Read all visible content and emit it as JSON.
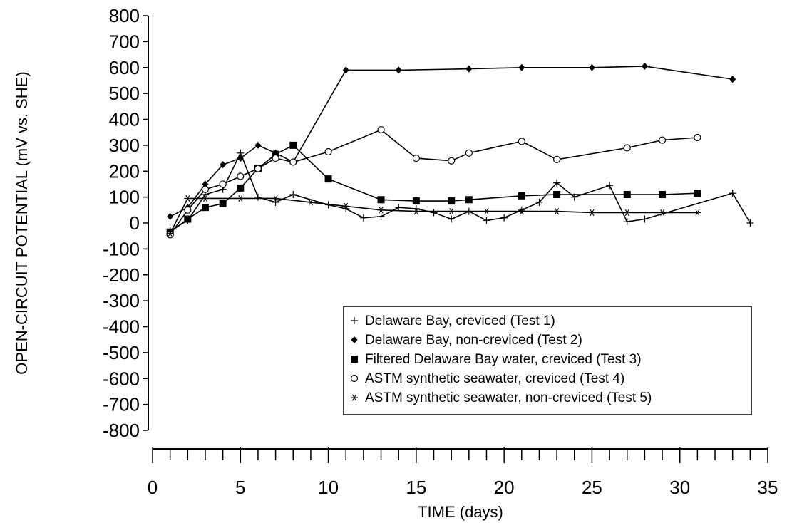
{
  "chart_data": {
    "type": "line",
    "title": "",
    "xlabel": "TIME (days)",
    "ylabel": "OPEN-CIRCUIT POTENTIAL (mV vs. SHE)",
    "xlim": [
      0,
      35
    ],
    "ylim": [
      -800,
      800
    ],
    "x_ticks": [
      "0",
      "5",
      "10",
      "15",
      "20",
      "25",
      "30",
      "35"
    ],
    "y_ticks": [
      "800",
      "700",
      "600",
      "500",
      "400",
      "300",
      "200",
      "100",
      "0",
      "-100",
      "-200",
      "-300",
      "-400",
      "-500",
      "-600",
      "-700",
      "-800"
    ],
    "grid": false,
    "legend_position": "bottom-right",
    "series": [
      {
        "name": "Delaware Bay, creviced (Test 1)",
        "marker": "plus",
        "x": [
          1,
          2,
          3,
          4,
          5,
          6,
          7,
          8,
          10,
          11,
          12,
          13,
          14,
          15,
          16,
          17,
          18,
          19,
          20,
          21,
          22,
          23,
          24,
          26,
          27,
          28,
          33,
          34
        ],
        "y": [
          -30,
          10,
          110,
          130,
          270,
          100,
          80,
          110,
          70,
          55,
          20,
          25,
          60,
          55,
          40,
          15,
          45,
          10,
          20,
          50,
          80,
          155,
          100,
          145,
          5,
          15,
          115,
          0
        ]
      },
      {
        "name": "Delaware Bay, non-creviced (Test 2)",
        "marker": "diamond",
        "x": [
          1,
          2,
          3,
          4,
          5,
          6,
          7,
          8,
          11,
          14,
          18,
          21,
          25,
          28,
          33
        ],
        "y": [
          25,
          60,
          150,
          225,
          250,
          300,
          270,
          235,
          590,
          590,
          595,
          600,
          600,
          605,
          555
        ]
      },
      {
        "name": "Filtered Delaware Bay water, creviced (Test 3)",
        "marker": "square",
        "x": [
          1,
          2,
          3,
          4,
          5,
          6,
          7,
          8,
          10,
          13,
          15,
          17,
          18,
          21,
          23,
          27,
          29,
          31
        ],
        "y": [
          -35,
          15,
          60,
          75,
          135,
          210,
          265,
          300,
          170,
          90,
          85,
          85,
          90,
          105,
          110,
          110,
          110,
          115
        ]
      },
      {
        "name": "ASTM synthetic seawater, creviced (Test 4)",
        "marker": "circle",
        "x": [
          1,
          2,
          3,
          4,
          5,
          6,
          7,
          8,
          10,
          13,
          15,
          17,
          18,
          21,
          23,
          27,
          29,
          31
        ],
        "y": [
          -45,
          50,
          130,
          150,
          180,
          210,
          250,
          235,
          275,
          360,
          250,
          240,
          270,
          315,
          245,
          290,
          320,
          330
        ]
      },
      {
        "name": "ASTM synthetic seawater, non-creviced (Test 5)",
        "marker": "asterisk",
        "x": [
          1,
          2,
          3,
          5,
          7,
          9,
          11,
          13,
          15,
          17,
          19,
          21,
          23,
          25,
          27,
          29,
          31
        ],
        "y": [
          -40,
          95,
          95,
          95,
          95,
          80,
          65,
          50,
          45,
          45,
          45,
          45,
          45,
          40,
          40,
          40,
          40
        ]
      }
    ]
  }
}
